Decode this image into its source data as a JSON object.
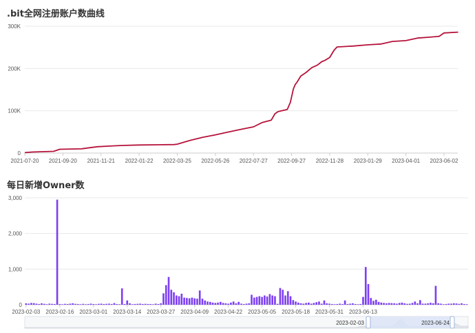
{
  "colors": {
    "line": "#b5123a",
    "bar": "#7e3ff2",
    "grid": "#e8e8e8",
    "axis": "#cccccc",
    "slider_fill": "#d9e4f7",
    "slider_handle": "#9fb3d8"
  },
  "chart_data": [
    {
      "type": "line",
      "title": ".bit全网注册账户数曲线",
      "x_ticks": [
        "2021-07-20",
        "2021-09-20",
        "2021-11-21",
        "2022-01-22",
        "2022-03-25",
        "2022-05-26",
        "2022-07-27",
        "2022-09-27",
        "2022-11-28",
        "2023-01-29",
        "2023-04-01",
        "2023-06-02"
      ],
      "y_ticks": [
        "0",
        "100K",
        "200K",
        "300K"
      ],
      "ylim": [
        0,
        300000
      ],
      "grid": true,
      "series": [
        {
          "x": [
            "2021-07-20",
            "2021-08-01",
            "2021-09-05",
            "2021-09-15",
            "2021-10-20",
            "2021-10-25",
            "2021-11-15",
            "2021-12-10",
            "2021-12-25",
            "2022-01-22",
            "2022-02-20",
            "2022-03-20",
            "2022-03-25",
            "2022-04-15",
            "2022-05-05",
            "2022-05-26",
            "2022-06-20",
            "2022-07-10",
            "2022-07-27",
            "2022-08-10",
            "2022-08-25",
            "2022-08-31",
            "2022-09-05",
            "2022-09-20",
            "2022-09-25",
            "2022-09-30",
            "2022-10-03",
            "2022-10-06",
            "2022-10-12",
            "2022-10-20",
            "2022-10-30",
            "2022-11-08",
            "2022-11-15",
            "2022-11-20",
            "2022-11-28",
            "2022-12-05",
            "2022-12-10",
            "2023-01-05",
            "2023-01-29",
            "2023-02-20",
            "2023-03-10",
            "2023-04-01",
            "2023-04-20",
            "2023-05-10",
            "2023-05-25",
            "2023-06-02",
            "2023-06-25"
          ],
          "y": [
            1000,
            2500,
            4000,
            9000,
            10000,
            11000,
            15000,
            17000,
            18000,
            19000,
            19500,
            20000,
            21000,
            30000,
            37000,
            43000,
            51000,
            57000,
            62000,
            72000,
            78000,
            93000,
            98000,
            103000,
            120000,
            152000,
            162000,
            168000,
            182000,
            190000,
            202000,
            208000,
            216000,
            219000,
            226000,
            243000,
            251000,
            253000,
            256000,
            258000,
            264000,
            266000,
            272000,
            274000,
            276000,
            284000,
            286000
          ]
        }
      ]
    },
    {
      "type": "bar",
      "title": "每日新增Owner数",
      "x_ticks": [
        "2023-02-03",
        "2023-02-16",
        "2023-03-01",
        "2023-03-14",
        "2023-03-27",
        "2023-04-09",
        "2023-04-22",
        "2023-05-05",
        "2023-05-18",
        "2023-05-31",
        "2023-06-13"
      ],
      "y_ticks": [
        "0",
        "1,000",
        "2,000",
        "3,000"
      ],
      "ylim": [
        0,
        3000
      ],
      "x_start": "2023-02-03",
      "x_end": "2023-06-24",
      "grid": true,
      "values": [
        40,
        30,
        50,
        45,
        30,
        20,
        40,
        25,
        15,
        30,
        25,
        20,
        2950,
        20,
        15,
        25,
        20,
        30,
        40,
        25,
        20,
        15,
        25,
        15,
        20,
        30,
        20,
        15,
        25,
        30,
        20,
        25,
        30,
        20,
        45,
        20,
        15,
        460,
        20,
        120,
        40,
        15,
        20,
        25,
        30,
        20,
        25,
        20,
        20,
        15,
        30,
        20,
        40,
        320,
        550,
        780,
        420,
        350,
        260,
        240,
        310,
        200,
        190,
        180,
        200,
        180,
        170,
        400,
        170,
        120,
        90,
        80,
        60,
        50,
        60,
        80,
        50,
        40,
        30,
        60,
        90,
        40,
        80,
        30,
        20,
        30,
        40,
        280,
        200,
        220,
        240,
        220,
        260,
        230,
        300,
        260,
        240,
        25,
        470,
        420,
        260,
        380,
        240,
        130,
        90,
        60,
        40,
        30,
        50,
        60,
        30,
        50,
        70,
        90,
        30,
        120,
        40,
        30,
        20,
        15,
        20,
        30,
        20,
        120,
        20,
        30,
        40,
        20,
        15,
        20,
        220,
        1060,
        580,
        190,
        110,
        140,
        80,
        60,
        50,
        40,
        50,
        45,
        40,
        30,
        50,
        60,
        40,
        25,
        30,
        50,
        90,
        40,
        130,
        30,
        30,
        40,
        55,
        40,
        530,
        40,
        30,
        15,
        20,
        30,
        30,
        40,
        35,
        25,
        40,
        20,
        15
      ]
    }
  ],
  "slider": {
    "start_label": "2023-02-03",
    "end_label": "2023-06-24"
  }
}
